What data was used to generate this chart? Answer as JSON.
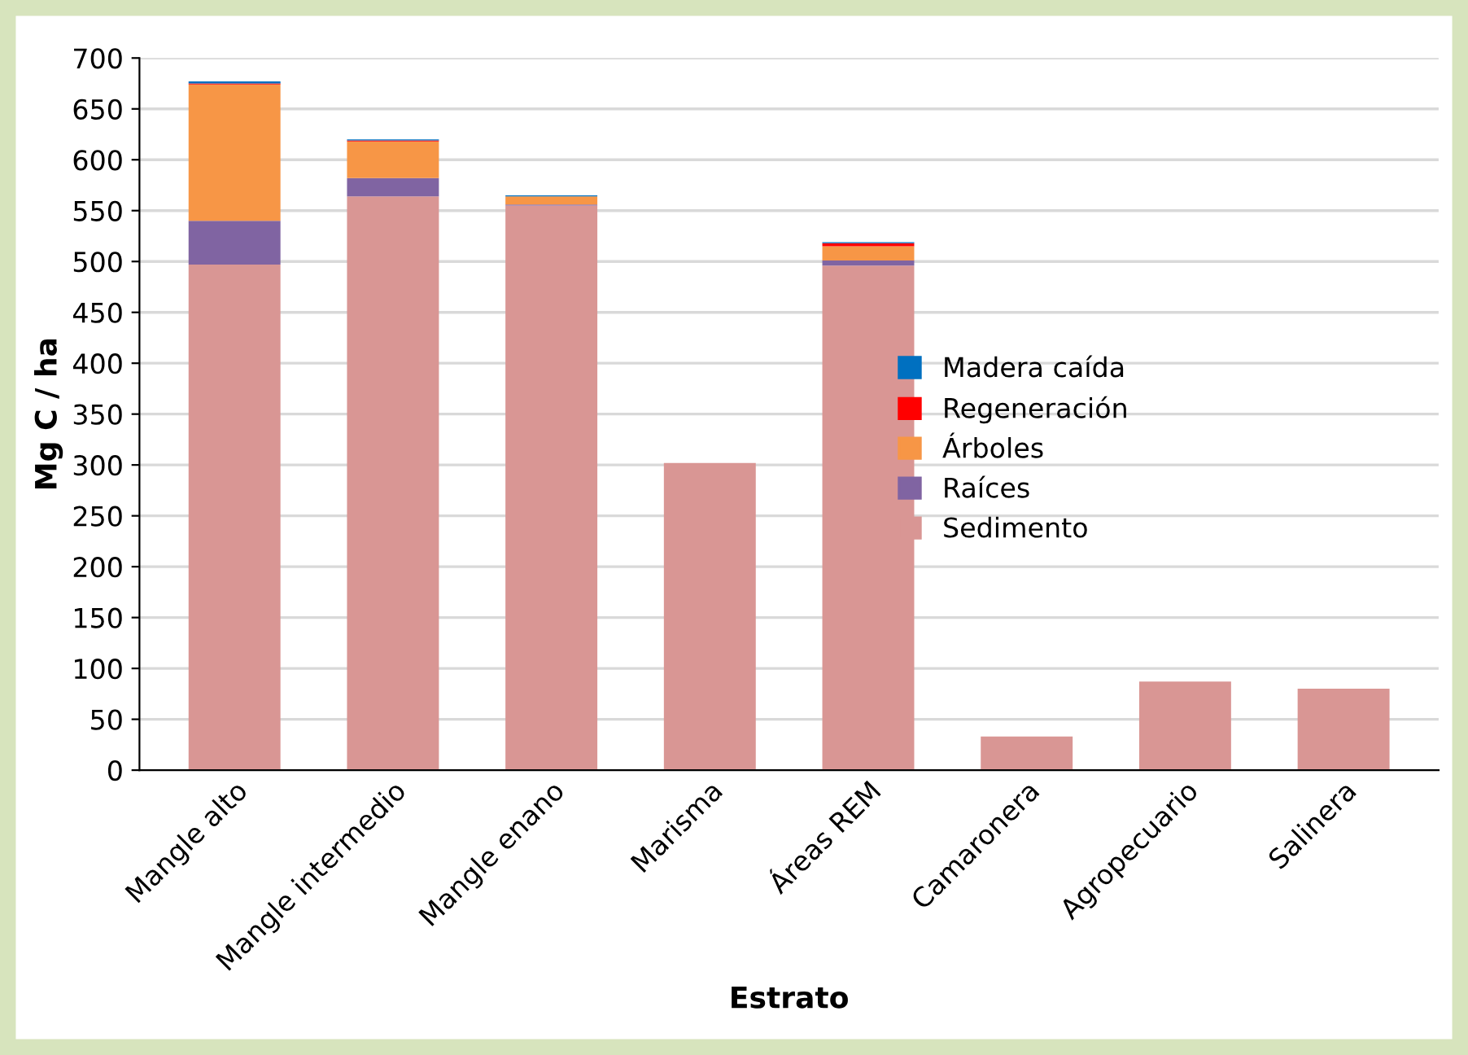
{
  "chart_data": {
    "type": "bar",
    "stacked": true,
    "xlabel": "Estrato",
    "ylabel": "Mg C / ha",
    "categories": [
      "Mangle alto",
      "Mangle intermedio",
      "Mangle enano",
      "Marisma",
      "Áreas REM",
      "Camaronera",
      "Agropecuario",
      "Salinera"
    ],
    "series": [
      {
        "name": "Sedimento",
        "color": "#d99694",
        "values": [
          497,
          564,
          555,
          302,
          496,
          33,
          87,
          80
        ]
      },
      {
        "name": "Raíces",
        "color": "#8064a2",
        "values": [
          43,
          18,
          1,
          0,
          5,
          0,
          0,
          0
        ]
      },
      {
        "name": "Árboles",
        "color": "#f79646",
        "values": [
          134,
          36,
          8,
          0,
          14,
          0,
          0,
          0
        ]
      },
      {
        "name": "Regeneración",
        "color": "#ff0000",
        "values": [
          1,
          1,
          0,
          0,
          3,
          0,
          0,
          0
        ]
      },
      {
        "name": "Madera caída",
        "color": "#0070c0",
        "values": [
          2,
          1,
          1,
          0,
          1,
          0,
          0,
          0
        ]
      }
    ],
    "ylim": [
      0,
      700
    ],
    "yticks": [
      0,
      50,
      100,
      150,
      200,
      250,
      300,
      350,
      400,
      450,
      500,
      550,
      600,
      650,
      700
    ],
    "grid": "y",
    "legend": "right"
  }
}
